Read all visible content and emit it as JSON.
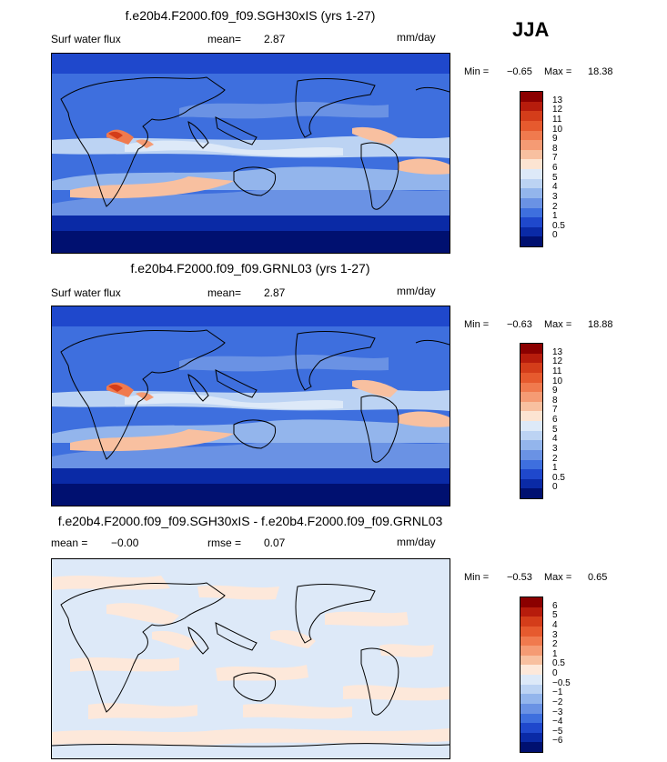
{
  "season": "JJA",
  "units": "mm/day",
  "panels": [
    {
      "title": "f.e20b4.F2000.f09_f09.SGH30xIS (yrs 1-27)",
      "variable": "Surf water flux",
      "stat_label": "mean=",
      "stat_value": "2.87",
      "min_label": "Min =",
      "min_value": "−0.65",
      "max_label": "Max =",
      "max_value": "18.38"
    },
    {
      "title": "f.e20b4.F2000.f09_f09.GRNL03 (yrs 1-27)",
      "variable": "Surf water flux",
      "stat_label": "mean=",
      "stat_value": "2.87",
      "min_label": "Min =",
      "min_value": "−0.63",
      "max_label": "Max =",
      "max_value": "18.88"
    },
    {
      "title": "f.e20b4.F2000.f09_f09.SGH30xIS - f.e20b4.F2000.f09_f09.GRNL03",
      "mean_label": "mean =",
      "mean_value": "−0.00",
      "rmse_label": "rmse =",
      "rmse_value": "0.07",
      "min_label": "Min =",
      "min_value": "−0.53",
      "max_label": "Max =",
      "max_value": "0.65"
    }
  ],
  "colorbar_levels": [
    "13",
    "12",
    "11",
    "10",
    "9",
    "8",
    "7",
    "6",
    "5",
    "4",
    "3",
    "2",
    "1",
    "0.5",
    "0"
  ],
  "colorbar_colors": [
    "#8b0000",
    "#b71c0c",
    "#d43d1a",
    "#e65a2e",
    "#f07a4e",
    "#f59b74",
    "#f8c0a0",
    "#fce4d2",
    "#dde9f8",
    "#bcd3f3",
    "#93b5ec",
    "#6a92e4",
    "#3e6fde",
    "#1f48cc",
    "#0a2aa6",
    "#001070"
  ],
  "diff_colorbar_levels": [
    "6",
    "5",
    "4",
    "3",
    "2",
    "1",
    "0.5",
    "0",
    "−0.5",
    "−1",
    "−2",
    "−3",
    "−4",
    "−5",
    "−6"
  ],
  "diff_colorbar_colors": [
    "#8b0000",
    "#b71c0c",
    "#d43d1a",
    "#e65a2e",
    "#f07a4e",
    "#f59b74",
    "#f8c0a0",
    "#fde8da",
    "#dde9f8",
    "#bcd3f3",
    "#93b5ec",
    "#6a92e4",
    "#3e6fde",
    "#1f48cc",
    "#0a2aa6",
    "#001070"
  ]
}
